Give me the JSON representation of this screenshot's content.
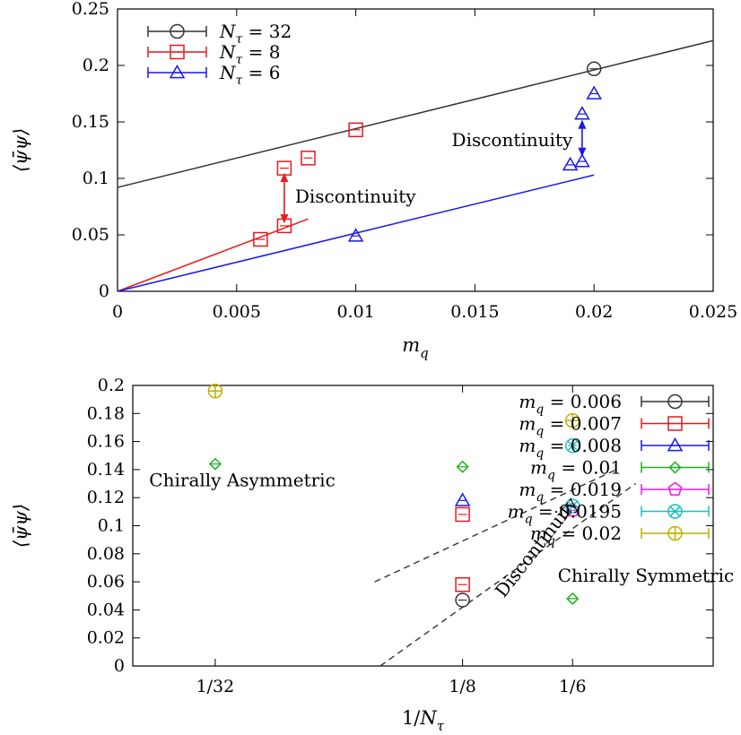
{
  "chart_data": [
    {
      "type": "scatter",
      "xlabel": "m_q",
      "ylabel": "⟨ψ̄ψ⟩",
      "xlim": [
        0,
        0.025
      ],
      "ylim": [
        0,
        0.25
      ],
      "xticks": [
        0,
        0.005,
        0.01,
        0.015,
        0.02,
        0.025
      ],
      "xtick_labels": [
        "0",
        "0.005",
        "0.01",
        "0.015",
        "0.02",
        "0.025"
      ],
      "yticks": [
        0,
        0.05,
        0.1,
        0.15,
        0.2,
        0.25
      ],
      "ytick_labels": [
        "0",
        "0.05",
        "0.1",
        "0.15",
        "0.2",
        "0.25"
      ],
      "legend_position": "top-left",
      "series": [
        {
          "name": "N_τ = 32",
          "color": "#333333",
          "marker": "circle",
          "points": [
            {
              "x": 0.02,
              "y": 0.197
            }
          ]
        },
        {
          "name": "N_τ = 8",
          "color": "#e8191b",
          "marker": "square",
          "points": [
            {
              "x": 0.006,
              "y": 0.046
            },
            {
              "x": 0.007,
              "y": 0.058
            },
            {
              "x": 0.007,
              "y": 0.109
            },
            {
              "x": 0.008,
              "y": 0.118
            },
            {
              "x": 0.01,
              "y": 0.143
            }
          ]
        },
        {
          "name": "N_τ = 6",
          "color": "#1919e8",
          "marker": "triangle",
          "points": [
            {
              "x": 0.01,
              "y": 0.049
            },
            {
              "x": 0.019,
              "y": 0.112
            },
            {
              "x": 0.0195,
              "y": 0.115
            },
            {
              "x": 0.0195,
              "y": 0.157
            },
            {
              "x": 0.02,
              "y": 0.175
            }
          ]
        }
      ],
      "fit_lines": [
        {
          "color": "#333333",
          "from": [
            0,
            0.092
          ],
          "to": [
            0.025,
            0.222
          ]
        },
        {
          "color": "#e8191b",
          "from": [
            0,
            0
          ],
          "to": [
            0.008,
            0.064
          ]
        },
        {
          "color": "#1919e8",
          "from": [
            0,
            0
          ],
          "to": [
            0.02,
            0.103
          ]
        }
      ],
      "annotations": [
        {
          "text": "Discontinuity",
          "color": "#e8191b",
          "arrow_x": 0.007,
          "arrow_y": [
            0.061,
            0.104
          ],
          "text_x": 0.00745,
          "text_y": 0.084
        },
        {
          "text": "Discontinuity",
          "color": "#1919e8",
          "arrow_x": 0.0195,
          "arrow_y": [
            0.12,
            0.151
          ],
          "text_x": 0.0191,
          "text_y": 0.134
        }
      ]
    },
    {
      "type": "scatter",
      "xlabel": "1/N_τ",
      "ylabel": "⟨ψ̄ψ⟩",
      "xlim": [
        0,
        0.22
      ],
      "ylim": [
        0,
        0.2
      ],
      "xticks": [
        0.03125,
        0.125,
        0.1667
      ],
      "xtick_labels": [
        "1/32",
        "1/8",
        "1/6"
      ],
      "yticks": [
        0,
        0.02,
        0.04,
        0.06,
        0.08,
        0.1,
        0.12,
        0.14,
        0.16,
        0.18,
        0.2
      ],
      "ytick_labels": [
        "0",
        "0.02",
        "0.04",
        "0.06",
        "0.08",
        "0.1",
        "0.12",
        "0.14",
        "0.16",
        "0.18",
        "0.2"
      ],
      "legend_position": "top-right",
      "series": [
        {
          "name": "m_q = 0.006",
          "color": "#333333",
          "marker": "circle",
          "points": [
            {
              "x": 0.125,
              "y": 0.047
            }
          ]
        },
        {
          "name": "m_q = 0.007",
          "color": "#e8191b",
          "marker": "square",
          "points": [
            {
              "x": 0.125,
              "y": 0.058
            },
            {
              "x": 0.125,
              "y": 0.108
            }
          ]
        },
        {
          "name": "m_q = 0.008",
          "color": "#1919e8",
          "marker": "triangle",
          "points": [
            {
              "x": 0.125,
              "y": 0.118
            }
          ]
        },
        {
          "name": "m_q = 0.01",
          "color": "#19b319",
          "marker": "diamond",
          "points": [
            {
              "x": 0.03125,
              "y": 0.144
            },
            {
              "x": 0.125,
              "y": 0.142
            },
            {
              "x": 0.1667,
              "y": 0.048
            }
          ]
        },
        {
          "name": "m_q = 0.019",
          "color": "#e819e8",
          "marker": "pentagon",
          "points": [
            {
              "x": 0.1667,
              "y": 0.111
            }
          ]
        },
        {
          "name": "m_q = 0.0195",
          "color": "#19c0c0",
          "marker": "circlex",
          "points": [
            {
              "x": 0.1667,
              "y": 0.114
            },
            {
              "x": 0.1667,
              "y": 0.157
            }
          ]
        },
        {
          "name": "m_q = 0.02",
          "color": "#c0b000",
          "marker": "circleplus",
          "points": [
            {
              "x": 0.03125,
              "y": 0.196
            },
            {
              "x": 0.1667,
              "y": 0.175
            }
          ]
        }
      ],
      "dashed_lines": [
        {
          "from": [
            0.0917,
            0.06
          ],
          "to": [
            0.1833,
            0.14
          ]
        },
        {
          "from": [
            0.0938,
            0.0
          ],
          "to": [
            0.1906,
            0.13
          ]
        }
      ],
      "annotations": [
        {
          "text": "Chirally Asymmetric",
          "x": 0.0415,
          "y": 0.128
        },
        {
          "text": "Chirally Symmetric",
          "x": 0.1945,
          "y": 0.06
        },
        {
          "text": "Discontinuity",
          "x": 0.1548,
          "y": 0.082,
          "rotate": -52
        }
      ]
    }
  ]
}
